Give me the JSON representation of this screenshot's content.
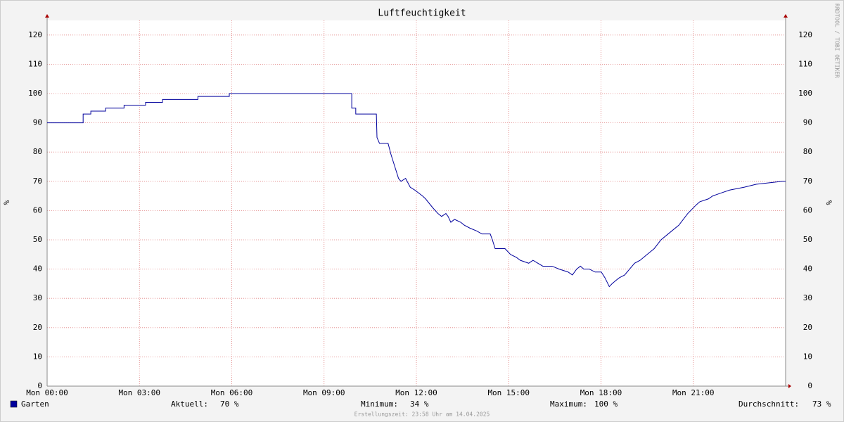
{
  "chart_data": {
    "type": "line",
    "title": "Luftfeuchtigkeit",
    "y_label": "%",
    "watermark": "RRDTOOL / TOBI OETIKER",
    "footer": "Erstellungszeit: 23:58 Uhr am 14.04.2025",
    "xlim": [
      0,
      24
    ],
    "xticks": [
      {
        "value": 0,
        "label": "Mon 00:00"
      },
      {
        "value": 3,
        "label": "Mon 03:00"
      },
      {
        "value": 6,
        "label": "Mon 06:00"
      },
      {
        "value": 9,
        "label": "Mon 09:00"
      },
      {
        "value": 12,
        "label": "Mon 12:00"
      },
      {
        "value": 15,
        "label": "Mon 15:00"
      },
      {
        "value": 18,
        "label": "Mon 18:00"
      },
      {
        "value": 21,
        "label": "Mon 21:00"
      }
    ],
    "ylim": [
      0,
      125
    ],
    "yticks": [
      0,
      10,
      20,
      30,
      40,
      50,
      60,
      70,
      80,
      90,
      100,
      110,
      120
    ],
    "grid": true,
    "x": [
      0,
      1.17,
      1.17,
      1.42,
      1.42,
      1.9,
      1.9,
      2.5,
      2.5,
      3.2,
      3.2,
      3.75,
      3.75,
      4.9,
      4.9,
      5.92,
      5.92,
      9.9,
      9.9,
      10.03,
      10.03,
      10.7,
      10.72,
      10.8,
      11.08,
      11.18,
      11.3,
      11.42,
      11.5,
      11.65,
      11.8,
      11.95,
      12.2,
      12.3,
      12.53,
      12.7,
      12.82,
      12.96,
      13.03,
      13.12,
      13.24,
      13.44,
      13.56,
      13.74,
      13.97,
      14.13,
      14.4,
      14.47,
      14.56,
      14.88,
      14.97,
      15.06,
      15.25,
      15.38,
      15.65,
      15.79,
      15.95,
      16.11,
      16.41,
      16.64,
      16.93,
      17.07,
      17.21,
      17.33,
      17.44,
      17.62,
      17.81,
      18.01,
      18.13,
      18.27,
      18.36,
      18.47,
      18.59,
      18.77,
      18.93,
      19.09,
      19.27,
      19.5,
      19.73,
      19.95,
      20.18,
      20.53,
      20.82,
      21.1,
      21.21,
      21.49,
      21.63,
      21.9,
      22.18,
      22.66,
      23.04,
      23.9,
      24
    ],
    "series": [
      {
        "name": "Garten",
        "color": "#00009c",
        "values": [
          90,
          90,
          93,
          93,
          94,
          94,
          95,
          95,
          96,
          96,
          97,
          97,
          98,
          98,
          99,
          99,
          100,
          100,
          95,
          95,
          93,
          93,
          85,
          83,
          83,
          79,
          75,
          71,
          70,
          71,
          68,
          67,
          65,
          64,
          61,
          59,
          58,
          59,
          58,
          56,
          57,
          56,
          55,
          54,
          53,
          52,
          52,
          50,
          47,
          47,
          46,
          45,
          44,
          43,
          42,
          43,
          42,
          41,
          41,
          40,
          39,
          38,
          40,
          41,
          40,
          40,
          39,
          39,
          37,
          34,
          35,
          36,
          37,
          38,
          40,
          42,
          43,
          45,
          47,
          50,
          52,
          55,
          59,
          62,
          63,
          64,
          65,
          66,
          67,
          68,
          69,
          70,
          70
        ]
      }
    ],
    "stats": [
      {
        "label": "Aktuell:",
        "value": 70,
        "value_label": "70 %"
      },
      {
        "label": "Minimum:",
        "value": 34,
        "value_label": "34 %"
      },
      {
        "label": "Maximum:",
        "value": 100,
        "value_label": "100 %"
      },
      {
        "label": "Durchschnitt:",
        "value": 73,
        "value_label": "73 %"
      }
    ]
  }
}
